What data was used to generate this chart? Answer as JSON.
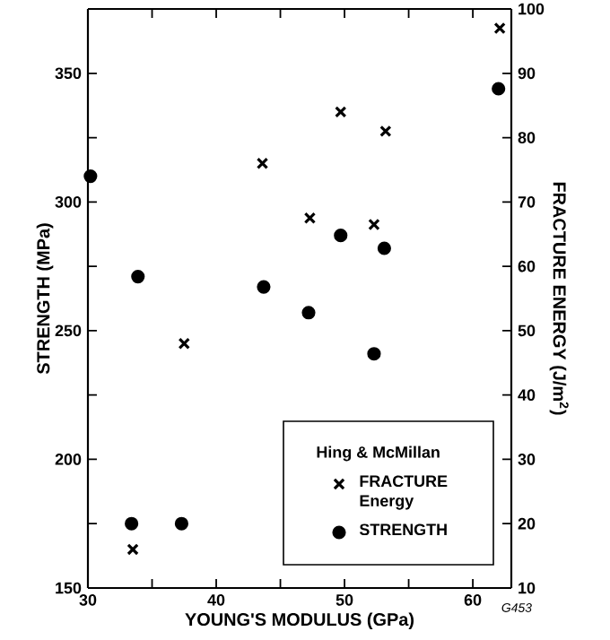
{
  "chart_data": {
    "type": "scatter",
    "xlabel": "YOUNG'S MODULUS (GPa)",
    "ylabel": "STRENGTH (MPa)",
    "y2label": "FRACTURE ENERGY (J/m$^{2}$)",
    "legend_title": "Hing & McMillan",
    "legend": "bottom right",
    "annotations": [
      "G453"
    ],
    "xlim": [
      30,
      63
    ],
    "xticks": [
      30,
      {
        "value": 35,
        "label": null
      },
      40,
      {
        "value": 45,
        "label": null
      },
      50,
      {
        "value": 55,
        "label": null
      },
      60
    ],
    "ylim": [
      150,
      375
    ],
    "yticks": [
      150,
      {
        "value": 175,
        "label": null
      },
      200,
      {
        "value": 225,
        "label": null
      },
      250,
      {
        "value": 275,
        "label": null
      },
      300,
      {
        "value": 325,
        "label": null
      },
      350
    ],
    "y2lim": [
      10,
      100
    ],
    "y2ticks": [
      10,
      20,
      30,
      40,
      50,
      60,
      70,
      80,
      90,
      100
    ],
    "series": [
      {
        "name": "FRACTURE Energy",
        "color": "#000000",
        "marker": "cross",
        "axis": "y2",
        "x": [
          33.5,
          37.5,
          43.6,
          47.3,
          49.7,
          52.3,
          53.2,
          62.1
        ],
        "values": [
          16,
          48,
          76,
          67.5,
          84,
          66.5,
          81,
          97
        ]
      },
      {
        "name": "STRENGTH",
        "color": "#000000",
        "marker": "circle",
        "x": [
          30.2,
          33.4,
          33.9,
          37.3,
          43.7,
          47.2,
          49.7,
          52.3,
          53.1,
          62
        ],
        "values": [
          310,
          175,
          271,
          175,
          267,
          257,
          287,
          241,
          282,
          344
        ]
      }
    ]
  }
}
